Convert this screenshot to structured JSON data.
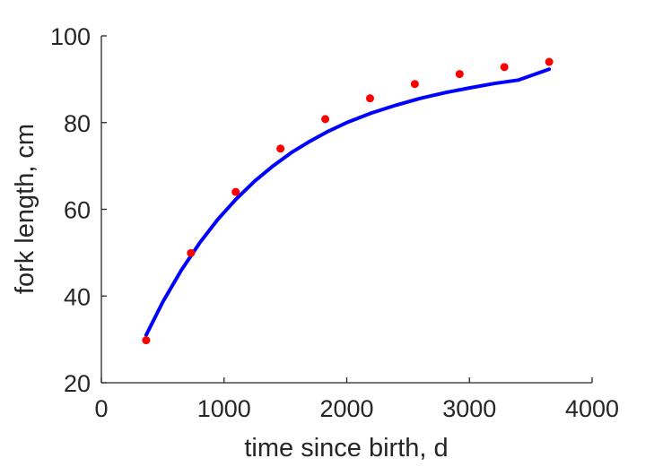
{
  "chart_data": {
    "type": "scatter",
    "title": "",
    "xlabel": "time since birth, d",
    "ylabel": "fork length, cm",
    "xlim": [
      0,
      4000
    ],
    "ylim": [
      20,
      100
    ],
    "xticks": [
      0,
      1000,
      2000,
      3000,
      4000
    ],
    "yticks": [
      20,
      40,
      60,
      80,
      100
    ],
    "xtick_labels": [
      "0",
      "1000",
      "2000",
      "3000",
      "4000"
    ],
    "ytick_labels": [
      "20",
      "40",
      "60",
      "80",
      "100"
    ],
    "grid": false,
    "box": "left-bottom",
    "series": [
      {
        "kind": "scatter",
        "color": "#ff0000",
        "x": [
          365,
          730,
          1095,
          1460,
          1825,
          2190,
          2555,
          2920,
          3285,
          3650
        ],
        "y": [
          29.8,
          49.9,
          64.0,
          74.0,
          80.8,
          85.6,
          88.9,
          91.2,
          92.8,
          94.0
        ]
      },
      {
        "kind": "line",
        "color": "#0000ff",
        "x": [
          365,
          500,
          650,
          800,
          950,
          1100,
          1250,
          1400,
          1550,
          1700,
          1850,
          2000,
          2200,
          2400,
          2600,
          2800,
          3000,
          3200,
          3400,
          3650
        ],
        "y": [
          31.0,
          38.6,
          45.9,
          52.2,
          57.7,
          62.4,
          66.5,
          70.0,
          73.1,
          75.7,
          78.0,
          80.0,
          82.2,
          84.0,
          85.6,
          86.9,
          88.0,
          89.0,
          89.8,
          92.3
        ]
      }
    ]
  }
}
